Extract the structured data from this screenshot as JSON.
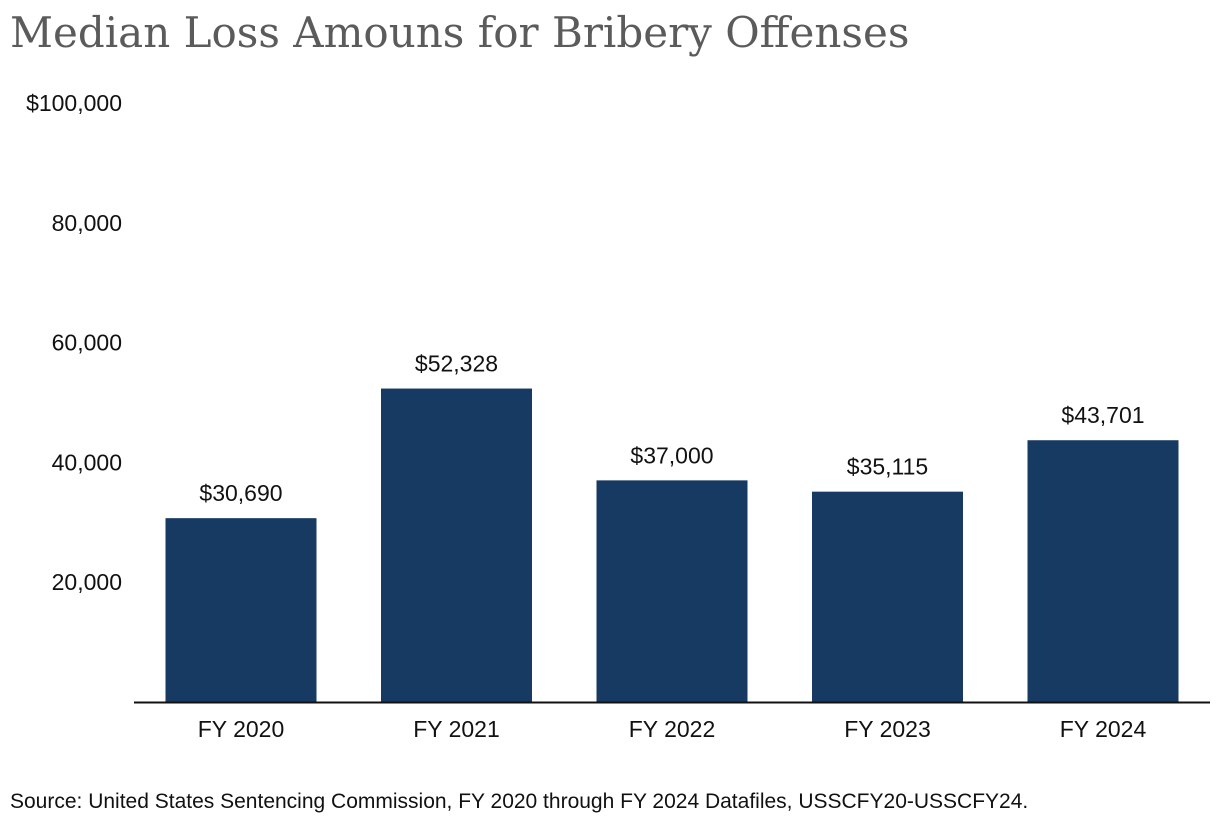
{
  "title": "Median Loss Amouns for Bribery Offenses",
  "source": "Source: United States Sentencing Commission, FY 2020 through FY 2024 Datafiles, USSCFY20-USSCFY24.",
  "colors": {
    "bar": "#163a62",
    "axis": "#111111",
    "title": "#5b5b5b"
  },
  "chart_data": {
    "type": "bar",
    "title": "Median Loss Amouns for Bribery Offenses",
    "xlabel": "",
    "ylabel": "",
    "categories": [
      "FY 2020",
      "FY 2021",
      "FY 2022",
      "FY 2023",
      "FY 2024"
    ],
    "values": [
      30690,
      52328,
      37000,
      35115,
      43701
    ],
    "data_labels": [
      "$30,690",
      "$52,328",
      "$37,000",
      "$35,115",
      "$43,701"
    ],
    "ylim": [
      0,
      100000
    ],
    "yticks": [
      20000,
      40000,
      60000,
      80000,
      100000
    ],
    "ytick_labels": [
      "20,000",
      "40,000",
      "60,000",
      "80,000",
      "$100,000"
    ],
    "grid": false,
    "legend": "none"
  }
}
